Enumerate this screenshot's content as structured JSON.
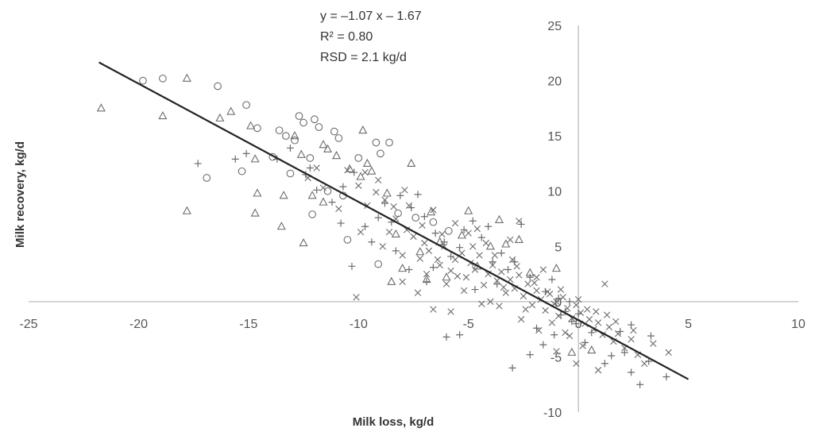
{
  "chart_data": {
    "type": "scatter",
    "title": "",
    "xlabel": "Milk loss, kg/d",
    "ylabel": "Milk recovery, kg/d",
    "xlim": [
      -25,
      10
    ],
    "ylim": [
      -10,
      25
    ],
    "xticks": [
      "-25",
      "-20",
      "-15",
      "-10",
      "-5",
      "0",
      "5",
      "10"
    ],
    "yticks": [
      "-10",
      "-5",
      "0",
      "5",
      "10",
      "15",
      "20",
      "25"
    ],
    "grid": false,
    "annotations": [
      "y = –1.07 x – 1.67",
      "R² = 0.80",
      "RSD = 2.1 kg/d"
    ],
    "regression": {
      "slope": -1.07,
      "intercept": -1.67,
      "x_range": [
        -21.8,
        5.0
      ]
    },
    "colors": {
      "markers": "#6b6b6b",
      "line": "#222222",
      "axis": "#aaaaaa"
    },
    "series": [
      {
        "marker": "circle",
        "points": [
          [
            -19.8,
            20.0
          ],
          [
            -18.9,
            20.2
          ],
          [
            -16.4,
            19.5
          ],
          [
            -15.1,
            17.8
          ],
          [
            -14.6,
            15.7
          ],
          [
            -13.6,
            15.5
          ],
          [
            -13.3,
            15.0
          ],
          [
            -12.7,
            16.8
          ],
          [
            -12.5,
            16.2
          ],
          [
            -12.0,
            16.5
          ],
          [
            -11.8,
            15.8
          ],
          [
            -11.1,
            15.4
          ],
          [
            -10.9,
            14.8
          ],
          [
            -9.2,
            14.4
          ],
          [
            -8.6,
            14.4
          ],
          [
            -13.9,
            13.1
          ],
          [
            -12.9,
            14.6
          ],
          [
            -12.2,
            13.0
          ],
          [
            -10.0,
            13.0
          ],
          [
            -9.0,
            13.4
          ],
          [
            -15.3,
            11.8
          ],
          [
            -16.9,
            11.2
          ],
          [
            -13.1,
            11.6
          ],
          [
            -11.4,
            10.0
          ],
          [
            -10.7,
            9.6
          ],
          [
            -12.1,
            7.9
          ],
          [
            -10.5,
            5.6
          ],
          [
            -9.1,
            3.4
          ],
          [
            -8.2,
            8.0
          ],
          [
            -7.4,
            7.6
          ],
          [
            -6.6,
            7.2
          ],
          [
            -5.9,
            6.4
          ]
        ]
      },
      {
        "marker": "triangle",
        "points": [
          [
            -21.7,
            17.5
          ],
          [
            -18.9,
            16.8
          ],
          [
            -17.8,
            20.2
          ],
          [
            -16.3,
            16.6
          ],
          [
            -15.8,
            17.2
          ],
          [
            -14.9,
            15.9
          ],
          [
            -14.7,
            12.9
          ],
          [
            -14.6,
            9.8
          ],
          [
            -14.7,
            8.0
          ],
          [
            -13.4,
            9.6
          ],
          [
            -12.9,
            15.0
          ],
          [
            -12.6,
            13.3
          ],
          [
            -12.1,
            9.6
          ],
          [
            -11.6,
            14.2
          ],
          [
            -11.4,
            13.8
          ],
          [
            -11.0,
            13.2
          ],
          [
            -10.4,
            12.0
          ],
          [
            -9.9,
            11.3
          ],
          [
            -9.6,
            12.5
          ],
          [
            -9.4,
            11.8
          ],
          [
            -8.7,
            9.8
          ],
          [
            -7.6,
            12.5
          ],
          [
            -8.5,
            1.8
          ],
          [
            -6.9,
            2.0
          ],
          [
            -6.0,
            2.2
          ],
          [
            -6.7,
            8.1
          ],
          [
            -5.0,
            8.2
          ],
          [
            -4.6,
            3.2
          ],
          [
            -3.6,
            7.4
          ],
          [
            -3.3,
            5.2
          ],
          [
            -2.7,
            5.6
          ],
          [
            -2.2,
            2.6
          ],
          [
            -11.6,
            9.0
          ],
          [
            -9.8,
            15.5
          ],
          [
            -13.5,
            6.8
          ],
          [
            -17.8,
            8.2
          ],
          [
            -12.5,
            5.3
          ],
          [
            -8.0,
            3.0
          ],
          [
            -4.0,
            5.0
          ],
          [
            -1.0,
            3.0
          ],
          [
            -0.3,
            -4.6
          ],
          [
            0.6,
            -4.4
          ],
          [
            -7.2,
            4.5
          ],
          [
            -8.3,
            6.1
          ],
          [
            -5.3,
            6.0
          ],
          [
            -6.3,
            5.4
          ]
        ]
      },
      {
        "marker": "plus",
        "points": [
          [
            -17.3,
            12.5
          ],
          [
            -15.6,
            12.9
          ],
          [
            -15.1,
            13.4
          ],
          [
            -13.7,
            12.9
          ],
          [
            -13.1,
            13.9
          ],
          [
            -12.2,
            12.1
          ],
          [
            -12.4,
            11.5
          ],
          [
            -11.9,
            10.1
          ],
          [
            -11.2,
            9.0
          ],
          [
            -10.7,
            10.4
          ],
          [
            -10.2,
            11.7
          ],
          [
            -10.3,
            3.2
          ],
          [
            -9.7,
            6.8
          ],
          [
            -9.1,
            7.6
          ],
          [
            -8.8,
            8.9
          ],
          [
            -8.5,
            7.2
          ],
          [
            -8.1,
            9.6
          ],
          [
            -7.6,
            8.5
          ],
          [
            -7.3,
            9.7
          ],
          [
            -7.0,
            7.7
          ],
          [
            -6.9,
            1.8
          ],
          [
            -6.5,
            6.2
          ],
          [
            -6.1,
            5.4
          ],
          [
            -5.8,
            4.1
          ],
          [
            -5.4,
            4.9
          ],
          [
            -5.2,
            6.5
          ],
          [
            -4.8,
            7.3
          ],
          [
            -4.4,
            5.8
          ],
          [
            -4.1,
            6.8
          ],
          [
            -3.9,
            3.6
          ],
          [
            -3.5,
            4.4
          ],
          [
            -3.2,
            2.9
          ],
          [
            -2.9,
            3.6
          ],
          [
            -2.6,
            7.0
          ],
          [
            -2.2,
            2.2
          ],
          [
            -1.9,
            -2.4
          ],
          [
            -1.5,
            0.9
          ],
          [
            -1.2,
            2.0
          ],
          [
            -0.9,
            0.3
          ],
          [
            -0.6,
            -0.9
          ],
          [
            -0.3,
            -1.8
          ],
          [
            -0.1,
            -2.0
          ],
          [
            0.3,
            -3.7
          ],
          [
            1.2,
            -5.6
          ],
          [
            1.9,
            -2.7
          ],
          [
            2.1,
            -4.6
          ],
          [
            2.4,
            -2.1
          ],
          [
            2.8,
            -7.5
          ],
          [
            3.3,
            -3.1
          ],
          [
            4.0,
            -6.8
          ],
          [
            -3.0,
            -6.0
          ],
          [
            -2.2,
            -4.8
          ],
          [
            -1.6,
            -3.9
          ],
          [
            -6.6,
            3.1
          ],
          [
            -7.7,
            2.9
          ],
          [
            -8.3,
            4.6
          ],
          [
            -9.4,
            5.4
          ],
          [
            -10.8,
            7.1
          ],
          [
            -4.7,
            1.1
          ],
          [
            -3.7,
            1.6
          ],
          [
            -6.0,
            -3.2
          ],
          [
            -5.4,
            -3.0
          ],
          [
            -0.8,
            -1.2
          ],
          [
            -0.4,
            0.0
          ],
          [
            0.0,
            -1.1
          ],
          [
            0.6,
            -2.8
          ],
          [
            1.5,
            -4.9
          ],
          [
            2.4,
            -6.4
          ],
          [
            3.2,
            -5.4
          ],
          [
            -1.1,
            -3.0
          ]
        ]
      },
      {
        "marker": "x",
        "points": [
          [
            -11.6,
            10.3
          ],
          [
            -10.9,
            8.4
          ],
          [
            -10.1,
            0.4
          ],
          [
            -9.6,
            8.7
          ],
          [
            -9.2,
            9.9
          ],
          [
            -8.9,
            5.0
          ],
          [
            -8.6,
            6.3
          ],
          [
            -8.3,
            7.5
          ],
          [
            -8.0,
            4.2
          ],
          [
            -7.8,
            6.5
          ],
          [
            -7.5,
            5.9
          ],
          [
            -7.2,
            3.9
          ],
          [
            -7.0,
            5.3
          ],
          [
            -6.8,
            4.6
          ],
          [
            -6.6,
            -0.7
          ],
          [
            -6.3,
            3.3
          ],
          [
            -6.1,
            5.0
          ],
          [
            -5.8,
            2.8
          ],
          [
            -5.6,
            3.8
          ],
          [
            -5.3,
            4.4
          ],
          [
            -5.1,
            2.2
          ],
          [
            -4.9,
            3.5
          ],
          [
            -4.7,
            2.9
          ],
          [
            -4.5,
            4.2
          ],
          [
            -4.3,
            1.5
          ],
          [
            -4.1,
            2.5
          ],
          [
            -3.9,
            3.3
          ],
          [
            -3.7,
            1.9
          ],
          [
            -3.5,
            2.7
          ],
          [
            -3.3,
            0.8
          ],
          [
            -3.1,
            2.0
          ],
          [
            -2.9,
            1.2
          ],
          [
            -2.7,
            2.4
          ],
          [
            -2.5,
            0.5
          ],
          [
            -2.3,
            1.6
          ],
          [
            -2.1,
            -0.3
          ],
          [
            -1.9,
            1.0
          ],
          [
            -1.7,
            0.2
          ],
          [
            -1.5,
            -0.8
          ],
          [
            -1.3,
            0.7
          ],
          [
            -1.1,
            -0.2
          ],
          [
            -0.9,
            -1.3
          ],
          [
            -0.7,
            0.4
          ],
          [
            -0.5,
            -0.6
          ],
          [
            -0.3,
            -1.5
          ],
          [
            -0.1,
            -0.3
          ],
          [
            0.1,
            -1.0
          ],
          [
            0.3,
            -2.0
          ],
          [
            0.5,
            -1.6
          ],
          [
            0.7,
            -2.5
          ],
          [
            0.9,
            -1.9
          ],
          [
            1.1,
            -3.0
          ],
          [
            1.4,
            -2.3
          ],
          [
            1.6,
            -3.6
          ],
          [
            1.8,
            -2.9
          ],
          [
            2.1,
            -4.2
          ],
          [
            2.4,
            -3.4
          ],
          [
            2.7,
            -4.8
          ],
          [
            3.0,
            -5.6
          ],
          [
            0.9,
            -6.2
          ],
          [
            -1.0,
            -4.5
          ],
          [
            -0.6,
            -2.8
          ],
          [
            1.2,
            1.6
          ],
          [
            -2.7,
            7.3
          ],
          [
            -8.8,
            9.2
          ],
          [
            -9.7,
            11.7
          ],
          [
            -10.5,
            11.9
          ],
          [
            -7.3,
            0.8
          ],
          [
            -5.8,
            -0.9
          ],
          [
            -4.4,
            -0.2
          ],
          [
            -3.6,
            -0.4
          ],
          [
            -2.6,
            -1.6
          ],
          [
            -1.8,
            -2.6
          ],
          [
            -1.2,
            -1.9
          ],
          [
            -0.4,
            -3.1
          ],
          [
            0.2,
            -4.0
          ],
          [
            -6.9,
            2.5
          ],
          [
            -6.0,
            1.6
          ],
          [
            -5.2,
            1.0
          ],
          [
            -4.0,
            0.0
          ],
          [
            -2.0,
            1.7
          ],
          [
            -1.6,
            2.9
          ],
          [
            -1.4,
            0.9
          ],
          [
            -3.0,
            3.8
          ],
          [
            -4.2,
            5.3
          ],
          [
            -5.0,
            6.2
          ],
          [
            -5.6,
            7.1
          ],
          [
            -6.6,
            8.3
          ],
          [
            -7.9,
            10.1
          ],
          [
            -9.1,
            11.0
          ],
          [
            -11.9,
            12.1
          ],
          [
            -12.3,
            11.2
          ],
          [
            -10.0,
            10.5
          ],
          [
            -8.4,
            8.6
          ],
          [
            -7.1,
            6.9
          ],
          [
            -6.2,
            6.1
          ],
          [
            -4.8,
            5.0
          ],
          [
            -3.8,
            4.2
          ],
          [
            -2.8,
            3.2
          ],
          [
            -1.9,
            2.2
          ],
          [
            -0.8,
            1.1
          ],
          [
            0.0,
            0.2
          ],
          [
            0.8,
            -0.9
          ],
          [
            1.7,
            -1.8
          ],
          [
            2.5,
            -2.6
          ],
          [
            3.4,
            -3.8
          ],
          [
            4.1,
            -4.6
          ],
          [
            -8.0,
            1.8
          ],
          [
            -6.4,
            3.8
          ],
          [
            -5.5,
            2.3
          ],
          [
            -3.4,
            1.3
          ],
          [
            -2.4,
            -0.7
          ],
          [
            -1.0,
            0.0
          ],
          [
            0.4,
            -0.7
          ],
          [
            1.3,
            -1.2
          ],
          [
            -3.1,
            5.6
          ],
          [
            -4.6,
            6.6
          ],
          [
            -7.7,
            8.7
          ],
          [
            -9.9,
            6.3
          ],
          [
            -0.1,
            -5.6
          ]
        ]
      }
    ]
  }
}
